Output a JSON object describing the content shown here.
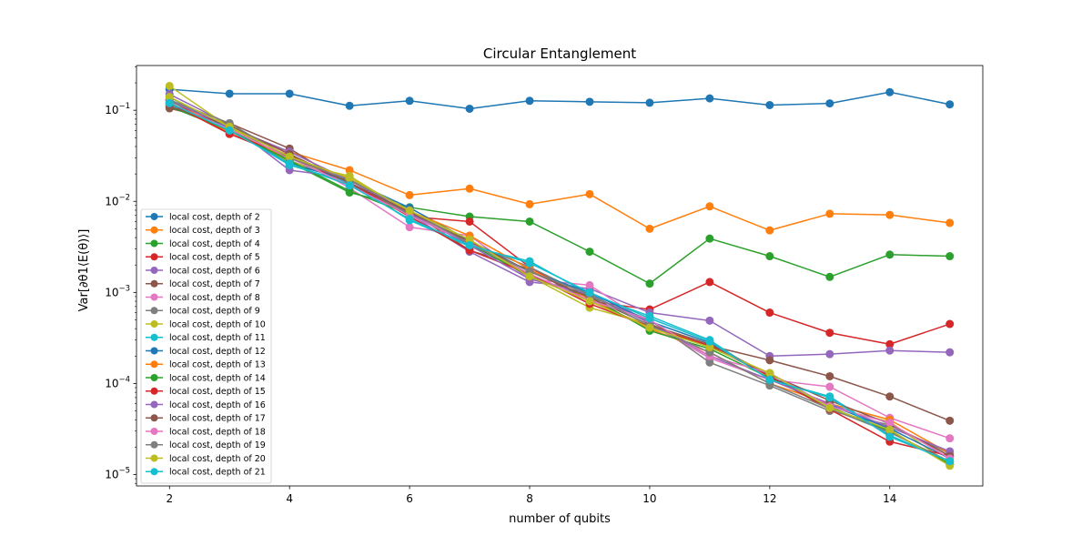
{
  "chart_data": {
    "type": "line",
    "title": "Circular Entanglement",
    "xlabel": "number of qubits",
    "ylabel": "Var[∂θ1⟨E(θ)⟩]",
    "yscale": "log",
    "xlim": [
      1.45,
      15.55
    ],
    "ylim": [
      7.5e-06,
      0.31
    ],
    "xticks": [
      2,
      4,
      6,
      8,
      10,
      12,
      14
    ],
    "xtick_labels": [
      "2",
      "4",
      "6",
      "8",
      "10",
      "12",
      "14"
    ],
    "yticks": [
      1e-05,
      0.0001,
      0.001,
      0.01,
      0.1
    ],
    "ytick_labels": [
      {
        "base": "10",
        "exp": "−5"
      },
      {
        "base": "10",
        "exp": "−4"
      },
      {
        "base": "10",
        "exp": "−3"
      },
      {
        "base": "10",
        "exp": "−2"
      },
      {
        "base": "10",
        "exp": "−1"
      }
    ],
    "legend_position": "lower-left",
    "x": [
      2,
      3,
      4,
      5,
      6,
      7,
      8,
      9,
      10,
      11,
      12,
      13,
      14,
      15
    ],
    "series": [
      {
        "name": "local cost, depth of 2",
        "color": "#1f77b4",
        "values": [
          0.17,
          0.152,
          0.152,
          0.112,
          0.127,
          0.104,
          0.127,
          0.124,
          0.121,
          0.135,
          0.114,
          0.119,
          0.158,
          0.116
        ]
      },
      {
        "name": "local cost, depth of 3",
        "color": "#ff7f0e",
        "values": [
          0.13,
          0.06,
          0.035,
          0.022,
          0.0117,
          0.0138,
          0.0093,
          0.012,
          0.005,
          0.0088,
          0.0048,
          0.0073,
          0.0071,
          0.0058
        ]
      },
      {
        "name": "local cost, depth of 4",
        "color": "#2ca02c",
        "values": [
          0.12,
          0.062,
          0.027,
          0.0125,
          0.0086,
          0.0068,
          0.006,
          0.0028,
          0.00125,
          0.0039,
          0.0025,
          0.00148,
          0.0026,
          0.0025
        ]
      },
      {
        "name": "local cost, depth of 5",
        "color": "#d62728",
        "values": [
          0.13,
          0.055,
          0.03,
          0.016,
          0.0068,
          0.006,
          0.0019,
          0.0008,
          0.00065,
          0.0013,
          0.0006,
          0.00036,
          0.00027,
          0.00045
        ]
      },
      {
        "name": "local cost, depth of 6",
        "color": "#9467bd",
        "values": [
          0.15,
          0.07,
          0.022,
          0.018,
          0.0072,
          0.0028,
          0.0013,
          0.0011,
          0.0006,
          0.00049,
          0.0002,
          0.00021,
          0.00023,
          0.00022
        ]
      },
      {
        "name": "local cost, depth of 7",
        "color": "#8c564b",
        "values": [
          0.105,
          0.072,
          0.038,
          0.015,
          0.0078,
          0.0029,
          0.0018,
          0.0008,
          0.00042,
          0.00026,
          0.00018,
          0.00012,
          7.2e-05,
          3.9e-05
        ]
      },
      {
        "name": "local cost, depth of 8",
        "color": "#e377c2",
        "values": [
          0.13,
          0.065,
          0.033,
          0.014,
          0.0052,
          0.0042,
          0.0014,
          0.0012,
          0.00045,
          0.00019,
          0.00011,
          9.2e-05,
          4.2e-05,
          2.5e-05
        ]
      },
      {
        "name": "local cost, depth of 9",
        "color": "#7f7f7f",
        "values": [
          0.125,
          0.068,
          0.028,
          0.016,
          0.0072,
          0.0035,
          0.0019,
          0.0009,
          0.0005,
          0.00017,
          9.5e-05,
          5e-05,
          3.5e-05,
          1.7e-05
        ]
      },
      {
        "name": "local cost, depth of 10",
        "color": "#bcbd22",
        "values": [
          0.185,
          0.065,
          0.027,
          0.019,
          0.0075,
          0.0037,
          0.0015,
          0.00068,
          0.00045,
          0.00025,
          0.00013,
          5.5e-05,
          3.8e-05,
          1.3e-05
        ]
      },
      {
        "name": "local cost, depth of 11",
        "color": "#17becf",
        "values": [
          0.115,
          0.062,
          0.025,
          0.016,
          0.0062,
          0.0032,
          0.0022,
          0.00095,
          0.00055,
          0.0003,
          0.00011,
          7.2e-05,
          2.7e-05,
          1.4e-05
        ]
      },
      {
        "name": "local cost, depth of 12",
        "color": "#1f77b4",
        "values": [
          0.14,
          0.062,
          0.026,
          0.017,
          0.0085,
          0.0037,
          0.0017,
          0.001,
          0.00048,
          0.00028,
          0.00012,
          5.8e-05,
          3.2e-05,
          1.5e-05
        ]
      },
      {
        "name": "local cost, depth of 13",
        "color": "#ff7f0e",
        "values": [
          0.12,
          0.058,
          0.03,
          0.018,
          0.0078,
          0.0042,
          0.0018,
          0.00085,
          0.0004,
          0.00022,
          0.0001,
          6e-05,
          4e-05,
          1.7e-05
        ]
      },
      {
        "name": "local cost, depth of 14",
        "color": "#2ca02c",
        "values": [
          0.11,
          0.06,
          0.028,
          0.013,
          0.0072,
          0.0034,
          0.0015,
          0.0009,
          0.00038,
          0.00024,
          0.000115,
          5.5e-05,
          3e-05,
          1.3e-05
        ]
      },
      {
        "name": "local cost, depth of 15",
        "color": "#d62728",
        "values": [
          0.12,
          0.055,
          0.032,
          0.016,
          0.0068,
          0.0029,
          0.0016,
          0.00075,
          0.00042,
          0.00026,
          0.00012,
          5.2e-05,
          2.3e-05,
          1.6e-05
        ]
      },
      {
        "name": "local cost, depth of 16",
        "color": "#9467bd",
        "values": [
          0.13,
          0.065,
          0.035,
          0.017,
          0.0074,
          0.0033,
          0.0014,
          0.00095,
          0.00046,
          0.0002,
          0.00011,
          6e-05,
          3.3e-05,
          1.8e-05
        ]
      },
      {
        "name": "local cost, depth of 17",
        "color": "#8c564b",
        "values": [
          0.11,
          0.068,
          0.033,
          0.016,
          0.0076,
          0.0036,
          0.0017,
          0.00088,
          0.00044,
          0.00027,
          0.000125,
          6.5e-05,
          3.6e-05,
          1.6e-05
        ]
      },
      {
        "name": "local cost, depth of 18",
        "color": "#e377c2",
        "values": [
          0.12,
          0.062,
          0.03,
          0.015,
          0.007,
          0.0035,
          0.0016,
          0.00082,
          0.0005,
          0.0002,
          0.00013,
          5.6e-05,
          3.7e-05,
          1.5e-05
        ]
      },
      {
        "name": "local cost, depth of 19",
        "color": "#7f7f7f",
        "values": [
          0.13,
          0.072,
          0.03,
          0.017,
          0.008,
          0.0034,
          0.0017,
          0.00095,
          0.00043,
          0.00022,
          0.0001,
          5.3e-05,
          2.9e-05,
          1.4e-05
        ]
      },
      {
        "name": "local cost, depth of 20",
        "color": "#bcbd22",
        "values": [
          0.14,
          0.066,
          0.031,
          0.018,
          0.0079,
          0.0038,
          0.0015,
          0.0008,
          0.00041,
          0.00025,
          0.00013,
          5.4e-05,
          3.1e-05,
          1.25e-05
        ]
      },
      {
        "name": "local cost, depth of 21",
        "color": "#17becf",
        "values": [
          0.12,
          0.06,
          0.026,
          0.015,
          0.0064,
          0.0033,
          0.0021,
          0.001,
          0.00052,
          0.00029,
          0.00011,
          7e-05,
          2.6e-05,
          1.4e-05
        ]
      }
    ]
  }
}
